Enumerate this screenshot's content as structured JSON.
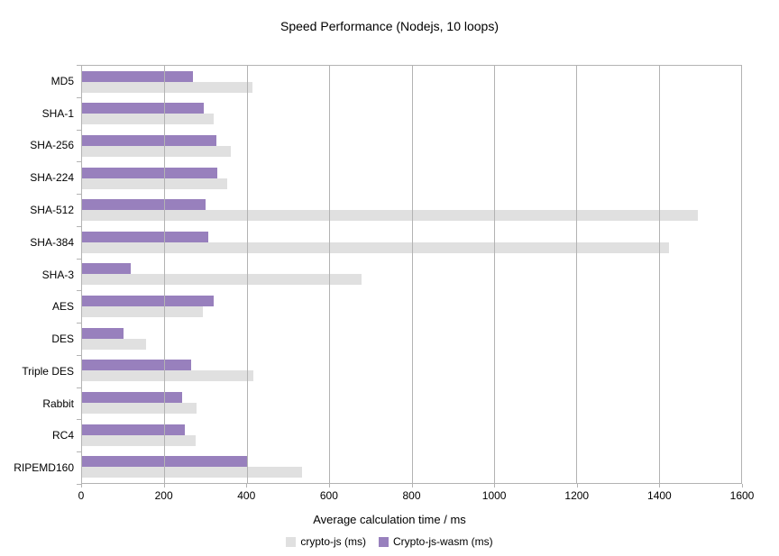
{
  "title": "Speed Performance (Nodejs, 10 loops)",
  "chart_data": {
    "type": "bar",
    "orientation": "horizontal",
    "title": "Speed Performance (Nodejs, 10 loops)",
    "xlabel": "Average calculation time / ms",
    "ylabel": "",
    "xlim": [
      0,
      1600
    ],
    "xticks": [
      0,
      200,
      400,
      600,
      800,
      1000,
      1200,
      1400,
      1600
    ],
    "grid": true,
    "legend_position": "bottom",
    "categories": [
      "MD5",
      "SHA-1",
      "SHA-256",
      "SHA-224",
      "SHA-512",
      "SHA-384",
      "SHA-3",
      "AES",
      "DES",
      "Triple DES",
      "Rabbit",
      "RC4",
      "RIPEMD160"
    ],
    "series": [
      {
        "name": "crypto-js (ms)",
        "color": "#e0e0e0",
        "values": [
          413,
          320,
          362,
          353,
          1495,
          1424,
          678,
          293,
          156,
          416,
          278,
          275,
          535
        ]
      },
      {
        "name": "Crypto-js-wasm (ms)",
        "color": "#9880bd",
        "values": [
          270,
          295,
          327,
          328,
          300,
          307,
          118,
          319,
          100,
          265,
          242,
          250,
          400
        ]
      }
    ]
  },
  "colors": {
    "axis": "#b3b3b3",
    "text": "#000000",
    "background": "#ffffff"
  }
}
